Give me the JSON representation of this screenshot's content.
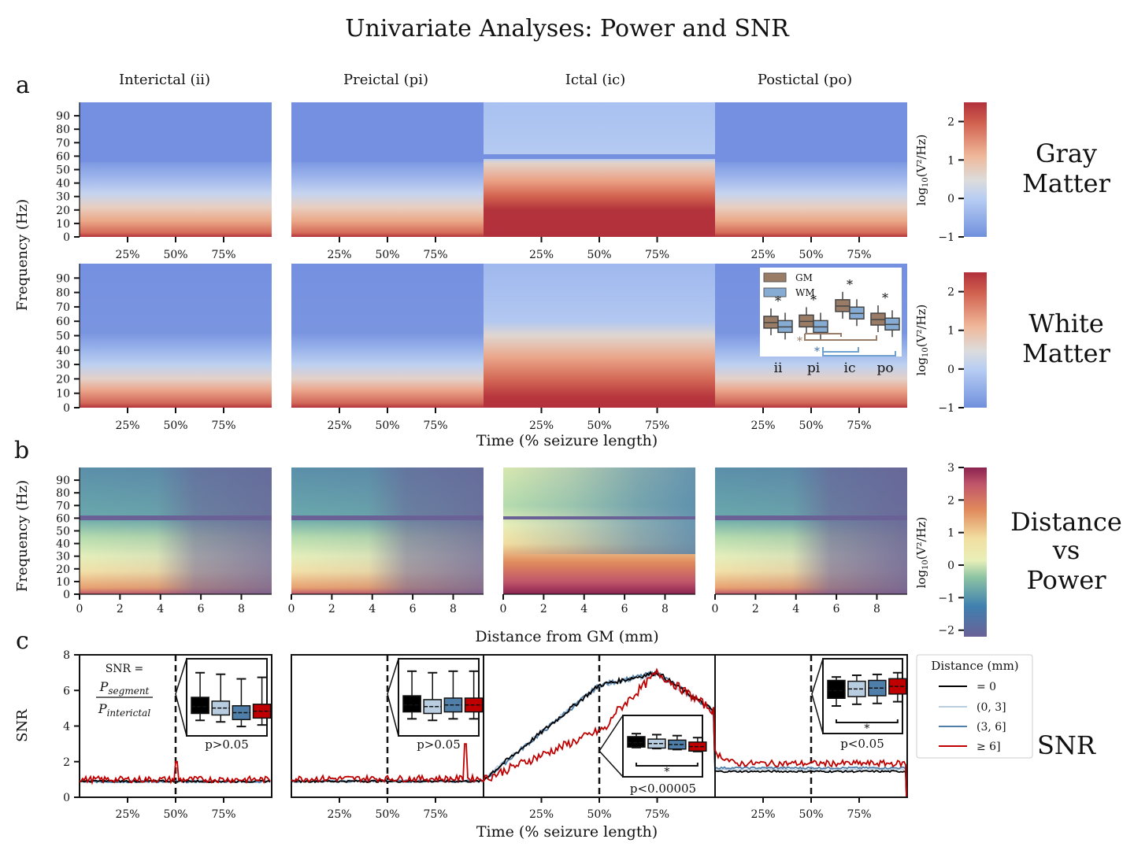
{
  "title": "Univariate Analyses: Power and SNR",
  "panel_letters": [
    "a",
    "b",
    "c"
  ],
  "phases": [
    "Interictal (ii)",
    "Preictal (pi)",
    "Ictal (ic)",
    "Postictal (po)"
  ],
  "row_labels": {
    "gray": "Gray Matter",
    "white": "White Matter",
    "distance": "Distance vs Power",
    "snr": "SNR"
  },
  "colors": {
    "gm": "#9a7c66",
    "wm": "#86acd4",
    "d0": "#000000",
    "d03": "#b8cde0",
    "d36": "#4f7ea8",
    "d6": "#c00000"
  },
  "chart_data": [
    {
      "id": "a-spectrograms",
      "type": "heatmap",
      "rows": [
        "Gray Matter",
        "White Matter"
      ],
      "columns": [
        "Interictal (ii)",
        "Preictal (pi)",
        "Ictal (ic)",
        "Postictal (po)"
      ],
      "ylabel": "Frequency (Hz)",
      "xlabel": "Time (% seizure length)",
      "yticks": [
        "0",
        "10",
        "20",
        "30",
        "40",
        "50",
        "60",
        "70",
        "80",
        "90"
      ],
      "xticks": [
        "25%",
        "50%",
        "75%"
      ],
      "ylim": [
        0,
        100
      ],
      "colorbar": {
        "label": "log10(V²/Hz)",
        "ticks": [
          "−1",
          "0",
          "1",
          "2"
        ],
        "range": [
          -1,
          2.5
        ],
        "cmap": "coolwarm"
      }
    },
    {
      "id": "a-inset-boxplot",
      "type": "box",
      "categories": [
        "ii",
        "pi",
        "ic",
        "po"
      ],
      "legend": [
        "GM",
        "WM"
      ],
      "series": [
        {
          "name": "GM",
          "medians": [
            0.45,
            0.47,
            0.72,
            0.5
          ]
        },
        {
          "name": "WM",
          "medians": [
            0.38,
            0.38,
            0.6,
            0.42
          ]
        }
      ],
      "significance": [
        "*",
        "*",
        "*",
        "*"
      ],
      "bracket_marks": [
        "*",
        "*"
      ]
    },
    {
      "id": "b-distance",
      "type": "heatmap",
      "ylabel": "Frequency (Hz)",
      "xlabel": "Distance from GM (mm)",
      "xticks": [
        "0",
        "2",
        "4",
        "6",
        "8"
      ],
      "yticks": [
        "0",
        "10",
        "20",
        "30",
        "40",
        "50",
        "60",
        "70",
        "80",
        "90"
      ],
      "xlim": [
        0,
        9.5
      ],
      "ylim": [
        0,
        100
      ],
      "colorbar": {
        "label": "log10(V²/Hz)",
        "ticks": [
          "−2",
          "−1",
          "0",
          "1",
          "2",
          "3"
        ],
        "range": [
          -2.2,
          3
        ],
        "cmap": "Spectral_r"
      }
    },
    {
      "id": "c-snr",
      "type": "line",
      "ylabel": "SNR",
      "xlabel": "Time (% seizure length)",
      "yticks": [
        "0",
        "2",
        "4",
        "6",
        "8"
      ],
      "xticks": [
        "25%",
        "50%",
        "75%"
      ],
      "ylim": [
        0,
        8
      ],
      "formula": {
        "lhs": "SNR =",
        "num": "P_segment",
        "den": "P_interictal"
      },
      "legend_title": "Distance (mm)",
      "legend": [
        "= 0",
        "(0, 3]",
        "(3, 6]",
        "≥ 6]"
      ],
      "series_levels": {
        "interictal": [
          0.9,
          0.9,
          0.88,
          1.0
        ],
        "preictal": [
          0.9,
          0.92,
          0.9,
          1.05
        ],
        "ictal_start": [
          1.0,
          1.0,
          0.95,
          1.0
        ],
        "ictal_peak": [
          7.0,
          6.9,
          7.0,
          7.2
        ],
        "postictal": [
          1.45,
          1.55,
          1.65,
          1.9
        ]
      },
      "insets": [
        {
          "phase": "Interictal (ii)",
          "p": "p>0.05",
          "star": "",
          "medians": [
            4.9,
            4.8,
            4.5,
            4.6
          ]
        },
        {
          "phase": "Preictal (pi)",
          "p": "p>0.05",
          "star": "",
          "medians": [
            5.0,
            4.9,
            5.0,
            5.0
          ]
        },
        {
          "phase": "Ictal (ic)",
          "p": "p<0.00005",
          "star": "*",
          "medians": [
            2.7,
            2.6,
            2.5,
            2.3
          ]
        },
        {
          "phase": "Postictal (po)",
          "p": "p<0.05",
          "star": "*",
          "medians": [
            5.1,
            5.2,
            5.25,
            5.35
          ]
        }
      ]
    }
  ]
}
